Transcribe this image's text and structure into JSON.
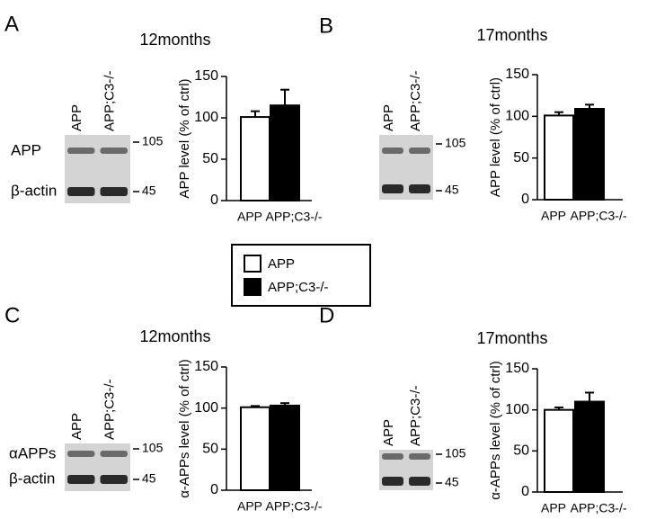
{
  "chart_data": [
    {
      "type": "bar",
      "panel": "A",
      "title": "12months",
      "ylabel": "APP level (% of ctrl)",
      "categories": [
        "APP",
        "APP;C3-/-"
      ],
      "values": [
        101,
        115
      ],
      "errors": [
        7,
        19
      ],
      "colors": [
        "#ffffff",
        "#000000"
      ],
      "ylim": [
        0,
        150
      ],
      "yticks": [
        0,
        50,
        100,
        150
      ],
      "blot": {
        "lanes": [
          "APP",
          "APP;C3-/-"
        ],
        "bands": [
          "APP",
          "β-actin"
        ],
        "markers": [
          "105",
          "45"
        ]
      }
    },
    {
      "type": "bar",
      "panel": "B",
      "title": "17months",
      "ylabel": "APP level (% of ctrl)",
      "categories": [
        "APP",
        "APP;C3-/-"
      ],
      "values": [
        101,
        109
      ],
      "errors": [
        4,
        5
      ],
      "colors": [
        "#ffffff",
        "#000000"
      ],
      "ylim": [
        0,
        150
      ],
      "yticks": [
        0,
        50,
        100,
        150
      ],
      "blot": {
        "lanes": [
          "APP",
          "APP;C3-/-"
        ],
        "markers": [
          "105",
          "45"
        ]
      }
    },
    {
      "type": "bar",
      "panel": "C",
      "title": "12months",
      "ylabel": "α-APPs level (% of ctrl)",
      "categories": [
        "APP",
        "APP;C3-/-"
      ],
      "values": [
        101,
        103
      ],
      "errors": [
        1.5,
        3
      ],
      "colors": [
        "#ffffff",
        "#000000"
      ],
      "ylim": [
        0,
        150
      ],
      "yticks": [
        0,
        50,
        100,
        150
      ],
      "blot": {
        "lanes": [
          "APP",
          "APP;C3-/-"
        ],
        "bands": [
          "αAPPs",
          "β-actin"
        ],
        "markers": [
          "105",
          "45"
        ]
      }
    },
    {
      "type": "bar",
      "panel": "D",
      "title": "17months",
      "ylabel": "α-APPs level (% of ctrl)",
      "categories": [
        "APP",
        "APP;C3-/-"
      ],
      "values": [
        100,
        110
      ],
      "errors": [
        3,
        11
      ],
      "colors": [
        "#ffffff",
        "#000000"
      ],
      "ylim": [
        0,
        150
      ],
      "yticks": [
        0,
        50,
        100,
        150
      ],
      "blot": {
        "lanes": [
          "APP",
          "APP;C3-/-"
        ],
        "markers": [
          "105",
          "45"
        ]
      }
    }
  ],
  "legend": [
    {
      "name": "APP",
      "color": "#ffffff"
    },
    {
      "name": "APP;C3-/-",
      "color": "#000000"
    }
  ]
}
